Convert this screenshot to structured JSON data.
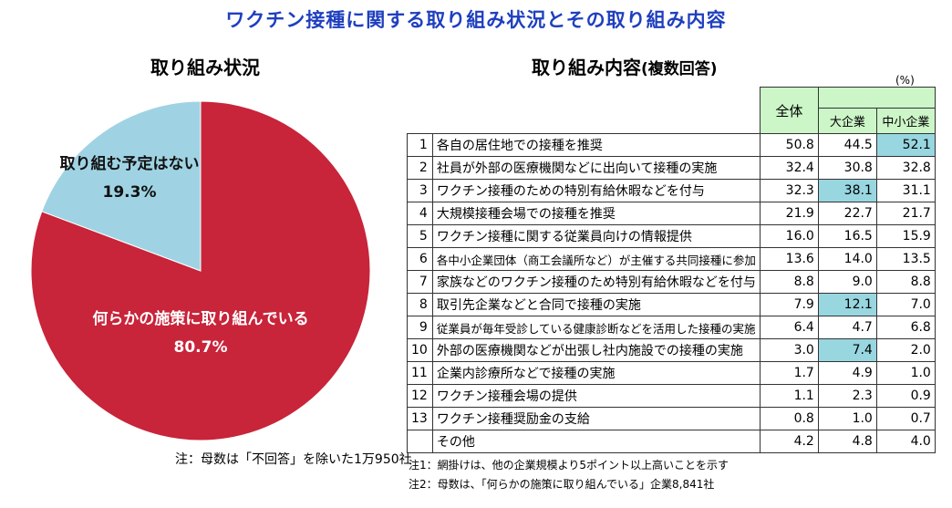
{
  "main_title": "ワクチン接種に関する取り組み状況とその取り組み内容",
  "pie_section": {
    "title": "取り組み状況",
    "note": "注：母数は「不回答」を除いた1万950社"
  },
  "table_section": {
    "title": "取り組み内容",
    "title_paren": "(複数回答)",
    "unit": "(%)",
    "headers": {
      "all": "全体",
      "large": "大企業",
      "sme": "中小企業"
    },
    "rows": [
      {
        "no": "1",
        "item": "各自の居住地での接種を推奨",
        "all": "50.8",
        "large": "44.5",
        "sme": "52.1",
        "hl": "sme"
      },
      {
        "no": "2",
        "item": "社員が外部の医療機関などに出向いて接種の実施",
        "all": "32.4",
        "large": "30.8",
        "sme": "32.8",
        "hl": ""
      },
      {
        "no": "3",
        "item": "ワクチン接種のための特別有給休暇などを付与",
        "all": "32.3",
        "large": "38.1",
        "sme": "31.1",
        "hl": "large"
      },
      {
        "no": "4",
        "item": "大規模接種会場での接種を推奨",
        "all": "21.9",
        "large": "22.7",
        "sme": "21.7",
        "hl": ""
      },
      {
        "no": "5",
        "item": "ワクチン接種に関する従業員向けの情報提供",
        "all": "16.0",
        "large": "16.5",
        "sme": "15.9",
        "hl": ""
      },
      {
        "no": "6",
        "item": "各中小企業団体（商工会議所など）が主催する共同接種に参加",
        "all": "13.6",
        "large": "14.0",
        "sme": "13.5",
        "hl": "",
        "small": true
      },
      {
        "no": "7",
        "item": "家族などのワクチン接種のため特別有給休暇などを付与",
        "all": "8.8",
        "large": "9.0",
        "sme": "8.8",
        "hl": ""
      },
      {
        "no": "8",
        "item": "取引先企業などと合同で接種の実施",
        "all": "7.9",
        "large": "12.1",
        "sme": "7.0",
        "hl": "large"
      },
      {
        "no": "9",
        "item": "従業員が毎年受診している健康診断などを活用した接種の実施",
        "all": "6.4",
        "large": "4.7",
        "sme": "6.8",
        "hl": "",
        "small": true
      },
      {
        "no": "10",
        "item": "外部の医療機関などが出張し社内施設での接種の実施",
        "all": "3.0",
        "large": "7.4",
        "sme": "2.0",
        "hl": "large"
      },
      {
        "no": "11",
        "item": "企業内診療所などで接種の実施",
        "all": "1.7",
        "large": "4.9",
        "sme": "1.0",
        "hl": ""
      },
      {
        "no": "12",
        "item": "ワクチン接種会場の提供",
        "all": "1.1",
        "large": "2.3",
        "sme": "0.9",
        "hl": ""
      },
      {
        "no": "13",
        "item": "ワクチン接種奨励金の支給",
        "all": "0.8",
        "large": "1.0",
        "sme": "0.7",
        "hl": ""
      },
      {
        "no": "",
        "item": "その他",
        "all": "4.2",
        "large": "4.8",
        "sme": "4.0",
        "hl": ""
      }
    ],
    "notes": [
      "注1：網掛けは、他の企業規模より5ポイント以上高いことを示す",
      "注2：母数は、「何らかの施策に取り組んでいる」企業8,841社"
    ]
  },
  "colors": {
    "title": "#1f3fbf",
    "pie_main": "#c8243a",
    "pie_other": "#9fd3e3",
    "highlight": "#98d6e0",
    "header_bg": "#ccf5c8"
  },
  "chart_data": [
    {
      "type": "pie",
      "title": "取り組み状況",
      "labels": [
        "何らかの施策に取り組んでいる",
        "取り組む予定はない"
      ],
      "values": [
        80.7,
        19.3
      ],
      "value_labels": [
        "80.7%",
        "19.3%"
      ],
      "colors": [
        "#c8243a",
        "#9fd3e3"
      ]
    },
    {
      "type": "table",
      "title": "取り組み内容",
      "columns": [
        "全体",
        "大企業",
        "中小企業"
      ],
      "note": "table rows listed in table_section.rows"
    }
  ]
}
